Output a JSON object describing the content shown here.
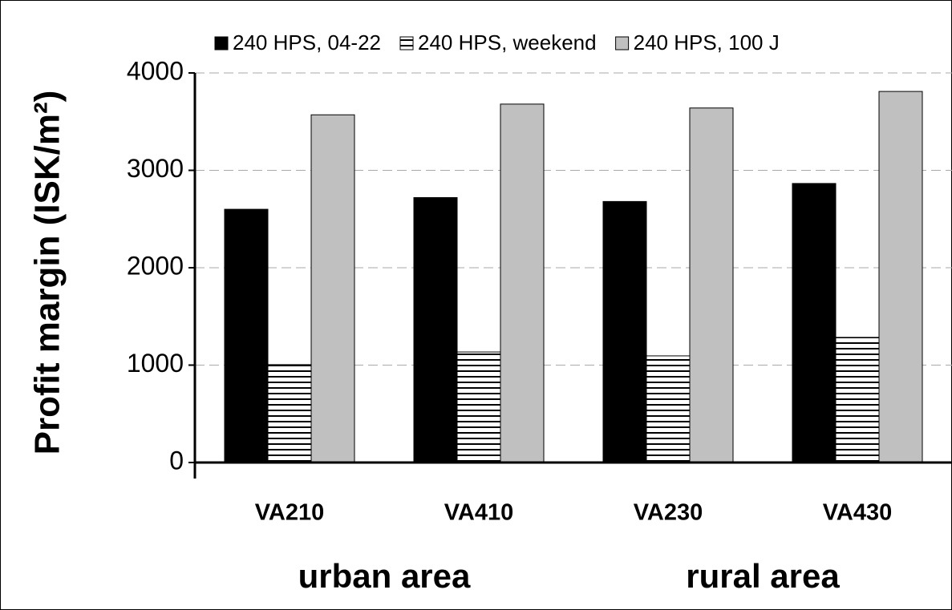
{
  "chart_data": {
    "type": "bar",
    "y_label": "Profit margin (ISK/m²)",
    "categories": [
      "VA210",
      "VA410",
      "VA230",
      "VA430"
    ],
    "group_labels": [
      "urban area",
      "rural area"
    ],
    "series": [
      {
        "name": "240 HPS, 04-22",
        "color": "#000000",
        "values": [
          2600,
          2720,
          2680,
          2865
        ]
      },
      {
        "name": "240 HPS, weekend",
        "color": "#000000",
        "hatch": "horizontal",
        "values": [
          1005,
          1135,
          1095,
          1285
        ]
      },
      {
        "name": "240 HPS, 100 J",
        "color": "#c0c0c0",
        "values": [
          3570,
          3680,
          3640,
          3810
        ]
      }
    ],
    "ylim": [
      0,
      4000
    ],
    "yticks": [
      0,
      1000,
      2000,
      3000,
      4000
    ],
    "grid": true
  }
}
